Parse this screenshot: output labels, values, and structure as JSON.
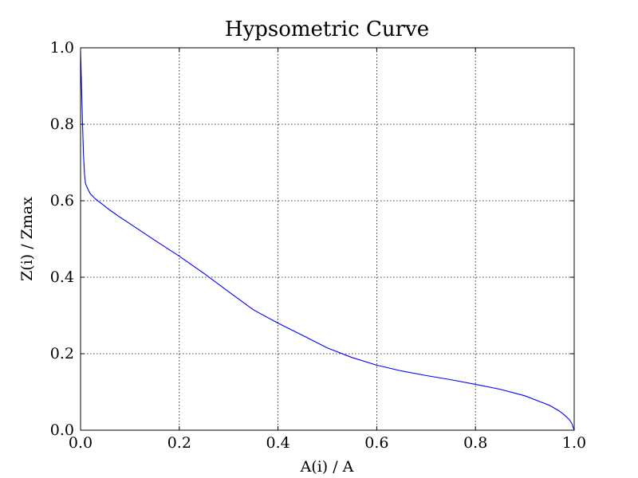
{
  "chart_data": {
    "type": "line",
    "title": "Hypsometric Curve",
    "xlabel": "A(i) / A",
    "ylabel": "Z(i) / Zmax",
    "xlim": [
      0.0,
      1.0
    ],
    "ylim": [
      0.0,
      1.0
    ],
    "xticks": [
      "0.0",
      "0.2",
      "0.4",
      "0.6",
      "0.8",
      "1.0"
    ],
    "yticks": [
      "0.0",
      "0.2",
      "0.4",
      "0.6",
      "0.8",
      "1.0"
    ],
    "grid": true,
    "series_color": "#0000ff",
    "series": [
      {
        "x": [
          0.0,
          0.002,
          0.004,
          0.006,
          0.008,
          0.01,
          0.015,
          0.02,
          0.03,
          0.04,
          0.06,
          0.08,
          0.1,
          0.15,
          0.2,
          0.25,
          0.3,
          0.35,
          0.4,
          0.45,
          0.5,
          0.55,
          0.6,
          0.65,
          0.7,
          0.75,
          0.8,
          0.85,
          0.9,
          0.93,
          0.95,
          0.97,
          0.98,
          0.99,
          0.995,
          1.0
        ],
        "y": [
          0.99,
          0.9,
          0.8,
          0.72,
          0.67,
          0.645,
          0.63,
          0.618,
          0.605,
          0.595,
          0.575,
          0.557,
          0.54,
          0.497,
          0.455,
          0.41,
          0.362,
          0.315,
          0.28,
          0.248,
          0.215,
          0.19,
          0.17,
          0.155,
          0.143,
          0.132,
          0.12,
          0.107,
          0.09,
          0.075,
          0.065,
          0.05,
          0.04,
          0.028,
          0.018,
          0.0
        ]
      }
    ]
  }
}
